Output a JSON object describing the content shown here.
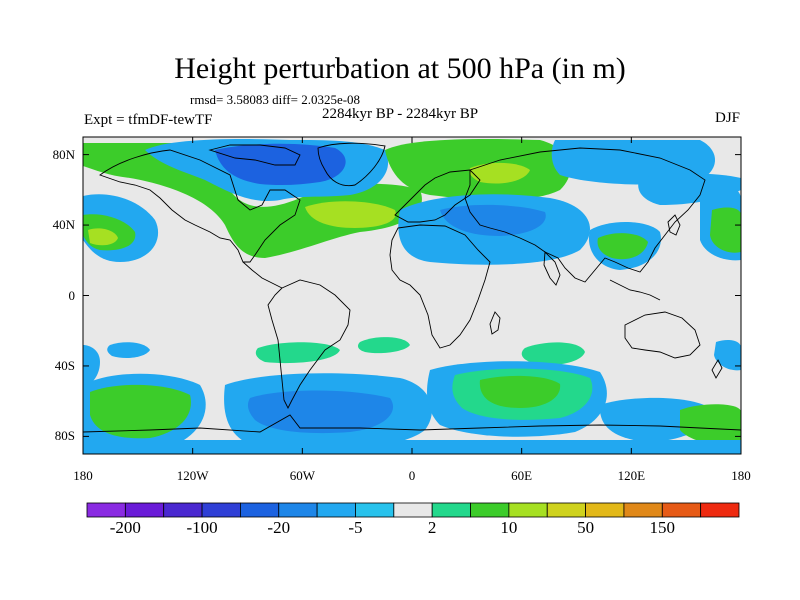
{
  "header": {
    "title": "Height perturbation at 500 hPa (in m)",
    "stats": "rmsd= 3.58083 diff= 2.0325e-08",
    "period": "2284kyr BP - 2284kyr BP",
    "experiment": "Expt = tfmDF-tewTF",
    "season": "DJF"
  },
  "map": {
    "projection": "cylindrical equidistant",
    "lon_range": [
      -180,
      180
    ],
    "lat_range": [
      -90,
      90
    ],
    "lat_ticks": [
      {
        "label": "80N",
        "lat": 80
      },
      {
        "label": "40N",
        "lat": 40
      },
      {
        "label": "0",
        "lat": 0
      },
      {
        "label": "40S",
        "lat": -40
      },
      {
        "label": "80S",
        "lat": -80
      }
    ],
    "lon_ticks": [
      {
        "label": "180",
        "lon": -180
      },
      {
        "label": "120W",
        "lon": -120
      },
      {
        "label": "60W",
        "lon": -60
      },
      {
        "label": "0",
        "lon": 0
      },
      {
        "label": "60E",
        "lon": 60
      },
      {
        "label": "120E",
        "lon": 120
      },
      {
        "label": "180",
        "lon": 180
      }
    ],
    "background_color": "#e8e8e8",
    "anomaly_regions": [
      {
        "name": "greenland-low",
        "lon": -40,
        "lat": 72,
        "level": "-20"
      },
      {
        "name": "greenland-low-core",
        "lon": -38,
        "lat": 70,
        "level": "-100"
      },
      {
        "name": "north-atlantic-high",
        "lon": -20,
        "lat": 45,
        "level": "10"
      },
      {
        "name": "north-atlantic-high-core",
        "lon": -25,
        "lat": 45,
        "level": "50"
      },
      {
        "name": "eurasia-low",
        "lon": 50,
        "lat": 45,
        "level": "-5"
      },
      {
        "name": "siberia-high",
        "lon": 60,
        "lat": 75,
        "level": "10"
      },
      {
        "name": "north-pacific-high",
        "lon": -170,
        "lat": 35,
        "level": "10"
      },
      {
        "name": "east-asia-high",
        "lon": 118,
        "lat": 30,
        "level": "10"
      },
      {
        "name": "southern-ocean-low",
        "lon": -30,
        "lat": -68,
        "level": "-20"
      },
      {
        "name": "indian-ocean-high",
        "lon": 55,
        "lat": -50,
        "level": "10"
      },
      {
        "name": "south-pacific-high",
        "lon": -160,
        "lat": -62,
        "level": "10"
      }
    ]
  },
  "colorbar": {
    "colors": [
      "#8a2be2",
      "#6a1bd8",
      "#4a28d0",
      "#2f3fd6",
      "#1c62e0",
      "#1e86e8",
      "#22a8f0",
      "#28c2ec",
      "#e8e8e8",
      "#23d88c",
      "#3ccc2a",
      "#a6e022",
      "#cfd21e",
      "#e2b818",
      "#e08818",
      "#e65a16",
      "#ee2a10"
    ],
    "labels": [
      {
        "text": "-200",
        "index": 1
      },
      {
        "text": "-100",
        "index": 3
      },
      {
        "text": "-20",
        "index": 5
      },
      {
        "text": "-5",
        "index": 7
      },
      {
        "text": "2",
        "index": 9
      },
      {
        "text": "10",
        "index": 11
      },
      {
        "text": "50",
        "index": 13
      },
      {
        "text": "150",
        "index": 15
      }
    ]
  }
}
